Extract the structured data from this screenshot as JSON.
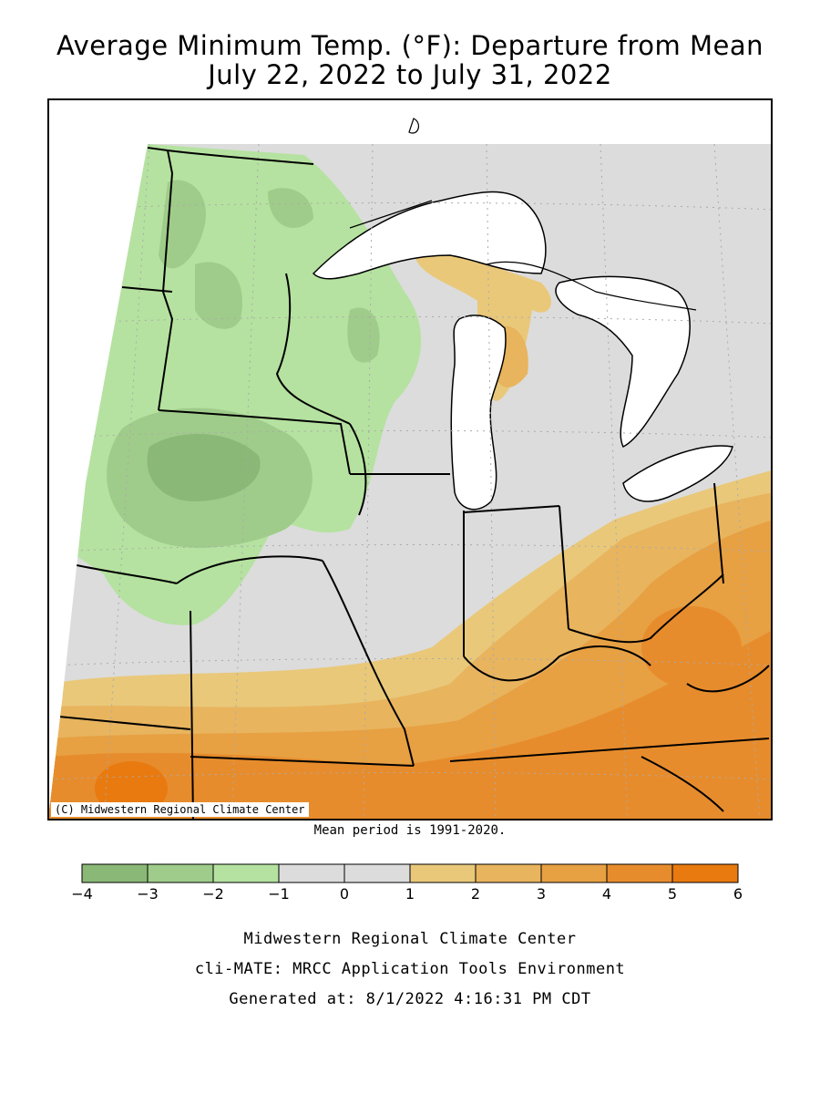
{
  "title_line1": "Average Minimum Temp. (°F): Departure from Mean",
  "title_line2": "July 22, 2022 to July 31, 2022",
  "copyright": "(C) Midwestern Regional Climate Center",
  "mean_period": "Mean period is 1991-2020.",
  "legend": {
    "bins": [
      {
        "min": -4,
        "max": -3,
        "color": "#8ab876"
      },
      {
        "min": -3,
        "max": -2,
        "color": "#9fcc8a"
      },
      {
        "min": -2,
        "max": -1,
        "color": "#b5e2a0"
      },
      {
        "min": -1,
        "max": 0,
        "color": "#dcdcdc"
      },
      {
        "min": 0,
        "max": 1,
        "color": "#dcdcdc"
      },
      {
        "min": 1,
        "max": 2,
        "color": "#e9c87a"
      },
      {
        "min": 2,
        "max": 3,
        "color": "#e8b45e"
      },
      {
        "min": 3,
        "max": 4,
        "color": "#e7a042"
      },
      {
        "min": 4,
        "max": 5,
        "color": "#e78c2c"
      },
      {
        "min": 5,
        "max": 6,
        "color": "#e87a10"
      }
    ],
    "tick_labels": [
      "−4",
      "−3",
      "−2",
      "−1",
      "0",
      "1",
      "2",
      "3",
      "4",
      "5",
      "6"
    ]
  },
  "footer": {
    "line1": "Midwestern Regional Climate Center",
    "line2": "cli-MATE: MRCC Application Tools Environment",
    "line3": "Generated at: 8/1/2022 4:16:31 PM CDT"
  }
}
